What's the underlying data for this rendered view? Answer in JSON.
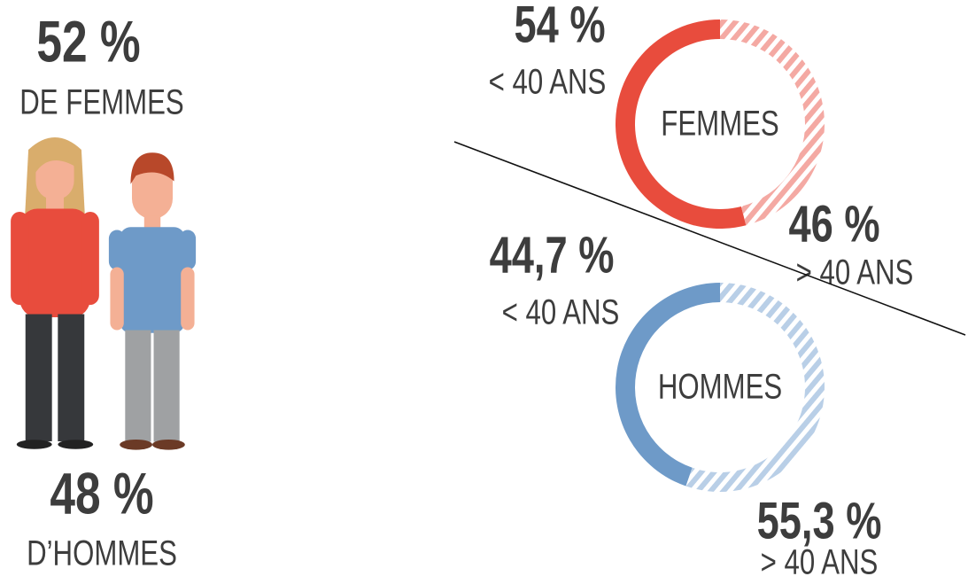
{
  "chart_data": [
    {
      "type": "pictogram",
      "categories": [
        "DE FEMMES",
        "D’HOMMES"
      ],
      "values": [
        52,
        48
      ],
      "value_labels": [
        "52 %",
        "48 %"
      ],
      "colors": [
        "#e84c3d",
        "#6e9ac8"
      ]
    },
    {
      "type": "donut",
      "center_label": "FEMMES",
      "categories": [
        "< 40 ANS",
        "> 40 ANS"
      ],
      "values": [
        54,
        46
      ],
      "value_labels": [
        "54 %",
        "46 %"
      ],
      "color": "#e84c3d",
      "hatch_color": "#f4a9a3"
    },
    {
      "type": "donut",
      "center_label": "HOMMES",
      "categories": [
        "< 40 ANS",
        "> 40 ANS"
      ],
      "values": [
        44.7,
        55.3
      ],
      "value_labels": [
        "44,7 %",
        "55,3 %"
      ],
      "color": "#6e9ac8",
      "hatch_color": "#b9cfe7"
    }
  ]
}
